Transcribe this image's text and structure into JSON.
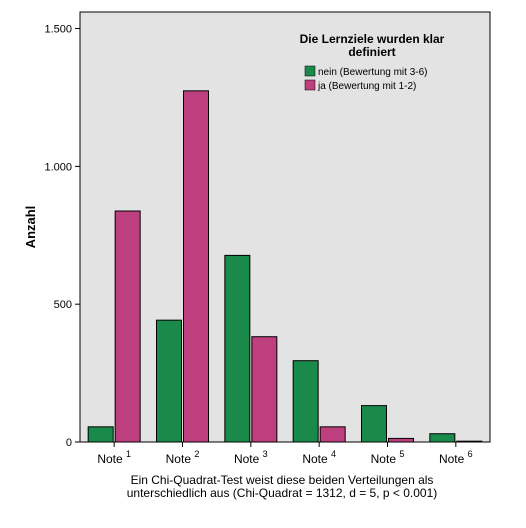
{
  "chart_data": {
    "type": "bar",
    "ylabel": "Anzahl",
    "ylim": [
      0,
      1560
    ],
    "yticks": [
      0,
      500,
      1000,
      1500
    ],
    "ytick_labels": [
      "0",
      "500",
      "1.000",
      "1.500"
    ],
    "categories": [
      {
        "base": "Note",
        "sup": "1"
      },
      {
        "base": "Note",
        "sup": "2"
      },
      {
        "base": "Note",
        "sup": "3"
      },
      {
        "base": "Note",
        "sup": "4"
      },
      {
        "base": "Note",
        "sup": "5"
      },
      {
        "base": "Note",
        "sup": "6"
      }
    ],
    "legend": {
      "title_lines": [
        "Die Lernziele wurden klar",
        "definiert"
      ],
      "placement": "top-right"
    },
    "series": [
      {
        "name": "nein (Bewertung mit 3-6)",
        "color": "#1a8a4a",
        "values": [
          55,
          442,
          677,
          295,
          132,
          30
        ]
      },
      {
        "name": "ja (Bewertung mit 1-2)",
        "color": "#bd3f7d",
        "values": [
          838,
          1274,
          382,
          55,
          13,
          3
        ]
      }
    ],
    "plot_background": "#e3e3e3",
    "grid": false,
    "caption_lines": [
      "Ein Chi-Quadrat-Test weist diese beiden Verteilungen als",
      "unterschiedlich aus (Chi-Quadrat = 1312, d = 5, p < 0.001)"
    ]
  }
}
